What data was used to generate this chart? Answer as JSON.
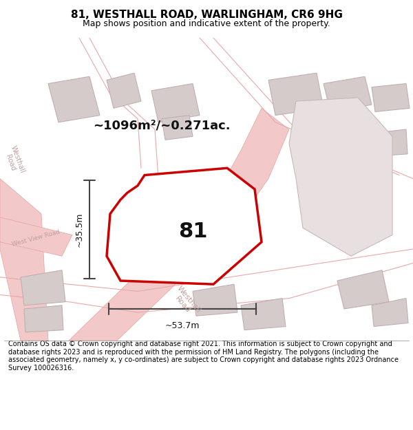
{
  "title": "81, WESTHALL ROAD, WARLINGHAM, CR6 9HG",
  "subtitle": "Map shows position and indicative extent of the property.",
  "footer": "Contains OS data © Crown copyright and database right 2021. This information is subject to Crown copyright and database rights 2023 and is reproduced with the permission of HM Land Registry. The polygons (including the associated geometry, namely x, y co-ordinates) are subject to Crown copyright and database rights 2023 Ordnance Survey 100026316.",
  "area_text": "~1096m²/~0.271ac.",
  "label_81": "81",
  "width_label": "~53.7m",
  "height_label": "~35.5m",
  "bg_color": "#f5f0f0",
  "map_bg": "#f5f0f0",
  "property_fill": "#ffffff",
  "property_edge": "#cc0000",
  "road_color": "#f5c0c0",
  "building_fill": "#d8d0d0",
  "building_edge": "#c0b8b8",
  "title_fontsize": 11,
  "subtitle_fontsize": 9,
  "footer_fontsize": 7,
  "map_xlim": [
    0,
    1
  ],
  "map_ylim": [
    0,
    1
  ],
  "figsize": [
    6.0,
    6.25
  ],
  "dpi": 100
}
